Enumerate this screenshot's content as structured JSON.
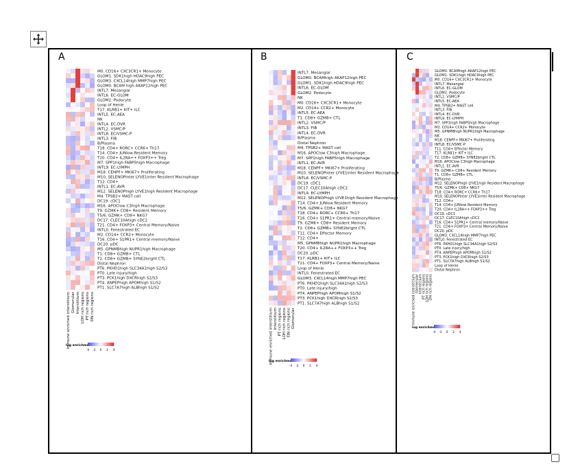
{
  "panels": [
    {
      "letter": "A",
      "legend_title": "log enrichment",
      "legend_ticks": [
        "-4",
        "-2",
        "0",
        "2",
        "4"
      ],
      "columns": [
        "Immune enriched interstitium",
        "Glomerular",
        "Interstitium",
        "LOH rich regions",
        "PT rich regions",
        "DN rich regions"
      ],
      "rows": [
        "M0. CD16+ CXC3CR1+ Monocyte",
        "GLOM1. SDK1high HDAC9high PEC",
        "GLOM3. CXCL14high MMP7high PEC",
        "GLOM0. BCAM high AKAP12high PEC",
        "INTL7. Mesangial",
        "INTL6. EC-GLOM",
        "GLOM2. Podocyte",
        "Loop of Henle",
        "T17. KLRB1+ KIT+ ILC",
        "INTL5. EC-AEA",
        "NK",
        "INTL4. EC-DVR",
        "INTL2. VSMC/P",
        "INTL8. EC/VSMC-P",
        "INTL3. FIB",
        "B/Plasma",
        "T18. CD4+ RORC+ CCR6+ Th17",
        "T14. CD4+ JUNlow Resident Memory",
        "T20. CD4+ IL2RA++ FOXP3++ Treg",
        "M7. SPP1high FABP5high Macrophage",
        "INTL9. EC-LYMPH",
        "M18. CENPF+ MKI67+ Proliferating",
        "M10. SELENOPinter LYVE1inter Resident Macrophage",
        "T12. CD4+",
        "INTL1. EC-AVR",
        "M12. SELENOPhigh LYVE1high Resident Macrophage",
        "M4. TPSB2+ MAST cell",
        "DC19. cDC1",
        "M16. APOClow C3high Macrophage",
        "T9. GZMK+ CD8+ Resident Memory",
        "T5/6. GZMK+ CD8+ NKG7",
        "DC17. CLEC10Ahigh cDC2",
        "T21. CD4+ FOXP3+ Central Memory/Naive",
        "INTL0. Fenestrated EC",
        "M2. CD14+ CCR2+ Monocyte",
        "T16. CD4+ S1PR1+ Central memory/Naive",
        "DC20. pDC",
        "M5. GPNMBhigh NUPR1high Macrophage",
        "T1. CD8+ GZMB+ CTL",
        "T2. CD8+ GZMB+ SYNE2bright CTL",
        "Distal Nephron",
        "PT6. PKHD1high SLC34A1high S2/S3",
        "PT0. Late injury/high",
        "PT3. PCK1high DXCRhigh S2/S3",
        "PT4. ANPEPhigh APOMhigh S1/S2",
        "PT1. SLC7A7high ALBhigh S1/S2"
      ]
    },
    {
      "letter": "B",
      "legend_title": "log enrichment",
      "legend_ticks": [
        "-4",
        "-2",
        "0",
        "2",
        "4"
      ],
      "columns": [
        "Immune enriched interstitium",
        "Interstitium",
        "PT rich regions",
        "LOH rich regions",
        "DN rich regions",
        "Glomerular"
      ],
      "rows": [
        "INTL7. Mesangial",
        "GLOM0. BCAMhigh AKAP12high PEC",
        "GLOM1. SDK1high HDAC9high PEC",
        "INTL6. EC-GLOM",
        "GLOM2. Podocyte",
        "NK",
        "M0. CD16+ CXC3CR1+ Monocyte",
        "M2. CD14+ CCR2+ Monocyte",
        "INTL5. EC-AEA",
        "T1. CD8+ GZMB+ CTL",
        "INTL2. VSMC/P",
        "INTL3. FIB",
        "INTL4. EC-DVR",
        "B/Plasma",
        "Distal Nephron",
        "M4. TPSB2+ MAST cell",
        "M16. APOClow C3high Macrophage",
        "M7. SPP1high FABP5high Macrophage",
        "INTL1. EC-AVR",
        "M18. CENPF+ MKI67+ Proliferating",
        "M10. SELENOPinter LYVE1inter Resident Macrophage",
        "INTL8. EC/VSMC-P",
        "DC19. cDC1",
        "DC17. CLEC10Ahigh cDC2",
        "INTL9. EC-LYMPH",
        "M12. SELENOPhigh LYVE1high Resident Macrophage",
        "T14. CD4+ JUNlow Resident Memory",
        "T5/6. GZMK+ CD8+ NKG7",
        "T18. CD4+ RORC+ CCR6+ Th17",
        "T16. CD4+ S1PR1+ Central memory/Naive",
        "T9. GZMK+ CD8+ Resident Memory",
        "T2. CD8+ GZMB+ SYNE2bright CTL",
        "T11. CD4+ Effector Memory",
        "T12. CD4+",
        "M5. GPNMBhigh NUPR1high Macrophage",
        "T20. CD4+ IL2RA++ FOXP3++ Treg",
        "DC20. pDC",
        "T17. KLRB1+ KIT+ ILC",
        "T21. CD4+ FOXP3+ Central Memory/Naive",
        "Loop of Henle",
        "INTL0. Fenestrated EC",
        "GLOM3. CXCL14high MMP7high PEC",
        "PT6. PKHD1high SLC34A1high S2/S3",
        "PT0. Late injury/high",
        "PT4. ANPEPhigh APOMhigh S1/S2",
        "PT3. PCK1high DXCRhigh S2/S3",
        "PT1. SLC7A7high ALBhigh S1/S2"
      ]
    },
    {
      "letter": "C",
      "legend_title": "log enrichment",
      "legend_ticks": [
        "-4",
        "-2",
        "0",
        "2",
        "4"
      ],
      "columns": [
        "Immune enriched interstitium",
        "Glomerular",
        "Interstitium",
        "PT rich regions",
        "LOH rich regions",
        "DN rich regions"
      ],
      "rows": [
        "GLOM0. BCAMhigh AKAP12high PEC",
        "GLOM1. SDK1high HDAC9high PEC",
        "M0. CD16+ CXC3CR1+ Monocyte",
        "INTL7. Mesangial",
        "INTL6. EC-GLOM",
        "GLOM2. Podocyte",
        "INTL2. VSMC/P",
        "INTL5. EC-AEA",
        "M4. TPSB2+ MAST cell",
        "INTL3. FIB",
        "INTL4. EC-DVR",
        "INTL9. EC-LYMPH",
        "M7. SPP1high FABP5high Macrophage",
        "M2. CD14+ CCR2+ Monocyte",
        "M5. GPNMBhigh NUPR1high Macrophage",
        "NK",
        "M18. CENPF+ MKI67+ Proliferating",
        "INTL8. EC/VSMC-P",
        "T11. CD4+ Effector Memory",
        "T17. KLRB1+ KIT+ ILC",
        "T2. CD8+ GZMB+ SYNE2bright CTL",
        "M16. APOClow C3high Macrophage",
        "INTL1. EC-AVR",
        "T9. GZMK+ CD8+ Resident Memory",
        "T1. CD8+ GZMB+ CTL",
        "B/Plasma",
        "M12. SELENOPhigh LYVE1high Resident Macrophage",
        "T5/6. GZMK+ CD8+ NKG7",
        "T18. CD4+ RORC+ CCR6+ Th17",
        "M10. SELENOPinter LYVE1inter Resident Macrophage",
        "T12. CD4+",
        "T14. CD4+ JUNlow Resident Memory",
        "T20. CD4+ IL2RA++ FOXP3++ Treg",
        "DC19. cDC1",
        "DC17. CLEC10Ahigh cDC2",
        "T16. CD4+ S1PR1+ Central memory/Naive",
        "T21. CD4+ FOXP3+ Central Memory/Naive",
        "DC20. pDC",
        "GLOM3. CXCL14high MMP7high PEC",
        "INTL0. Fenestrated EC",
        "PT6. PKHD1high SLC34A1high S2/S3",
        "PT0. Late injury/high",
        "PT4. ANPEPhigh APOMhigh S1/S2",
        "PT3. PCK1high DXCRhigh S2/S3",
        "PT1. SLC7A7high ALBhigh S1/S2",
        "Loop of Henle",
        "Distal Nephron"
      ]
    }
  ]
}
